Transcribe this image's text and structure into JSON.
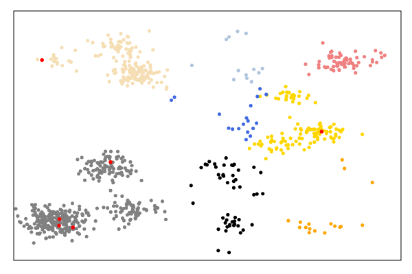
{
  "chart_data": {
    "type": "scatter",
    "title": "",
    "xlabel": "",
    "ylabel": "",
    "xlim": [
      0,
      100
    ],
    "ylim": [
      0,
      100
    ],
    "axes_visible": false,
    "grid": false,
    "legend": "none",
    "clusters": [
      {
        "color": "#808080",
        "center": [
          10.5,
          15.5
        ],
        "spread": [
          3.8,
          3.0
        ],
        "count": 230,
        "seed": 11
      },
      {
        "color": "#808080",
        "center": [
          24.0,
          37.5
        ],
        "spread": [
          3.3,
          2.6
        ],
        "count": 90,
        "seed": 12
      },
      {
        "color": "#808080",
        "center": [
          29.0,
          20.0
        ],
        "spread": [
          4.0,
          2.7
        ],
        "count": 65,
        "seed": 13
      },
      {
        "color": "#F5DEB3",
        "center": [
          31.5,
          75.0
        ],
        "spread": [
          3.2,
          2.6
        ],
        "count": 110,
        "seed": 21
      },
      {
        "color": "#F5DEB3",
        "center": [
          27.5,
          86.5
        ],
        "spread": [
          2.7,
          2.2
        ],
        "count": 45,
        "seed": 22
      },
      {
        "color": "#F5DEB3",
        "center": [
          9.5,
          80.5
        ],
        "spread": [
          2.4,
          1.7
        ],
        "count": 14,
        "seed": 23
      },
      {
        "color": "#F08080",
        "center": [
          84.5,
          79.5
        ],
        "spread": [
          3.2,
          2.1
        ],
        "count": 60,
        "seed": 31
      },
      {
        "color": "#FFD700",
        "center": [
          79.5,
          51.5
        ],
        "spread": [
          3.2,
          2.1
        ],
        "count": 60,
        "seed": 41
      },
      {
        "color": "#FFD700",
        "center": [
          67.5,
          47.0
        ],
        "spread": [
          3.6,
          1.9
        ],
        "count": 35,
        "seed": 42
      },
      {
        "color": "#FFD700",
        "center": [
          70.5,
          65.5
        ],
        "spread": [
          3.3,
          1.8
        ],
        "count": 25,
        "seed": 43
      },
      {
        "color": "#FFA500",
        "center": [
          79.5,
          12.5
        ],
        "spread": [
          6.0,
          1.4
        ],
        "count": 9,
        "seed": 51
      },
      {
        "color": "#000000",
        "center": [
          56.5,
          14.0
        ],
        "spread": [
          2.7,
          3.2
        ],
        "count": 20,
        "seed": 61
      },
      {
        "color": "#000000",
        "center": [
          54.0,
          36.5
        ],
        "spread": [
          4.8,
          3.3
        ],
        "count": 15,
        "seed": 62
      }
    ],
    "points": [
      {
        "x": 60.0,
        "y": 91.0,
        "color": "#B0C4DE"
      },
      {
        "x": 57.8,
        "y": 91.8,
        "color": "#B0C4DE"
      },
      {
        "x": 55.6,
        "y": 89.6,
        "color": "#B0C4DE"
      },
      {
        "x": 54.9,
        "y": 88.6,
        "color": "#B0C4DE"
      },
      {
        "x": 46.0,
        "y": 78.2,
        "color": "#B0C4DE"
      },
      {
        "x": 58.0,
        "y": 76.1,
        "color": "#B0C4DE"
      },
      {
        "x": 60.0,
        "y": 74.3,
        "color": "#B0C4DE"
      },
      {
        "x": 62.0,
        "y": 76.6,
        "color": "#B0C4DE"
      },
      {
        "x": 63.3,
        "y": 75.2,
        "color": "#B0C4DE"
      },
      {
        "x": 64.2,
        "y": 76.9,
        "color": "#B0C4DE"
      },
      {
        "x": 56.8,
        "y": 72.5,
        "color": "#B0C4DE"
      },
      {
        "x": 61.4,
        "y": 71.6,
        "color": "#B0C4DE"
      },
      {
        "x": 60.2,
        "y": 73.0,
        "color": "#B0C4DE"
      },
      {
        "x": 63.6,
        "y": 68.8,
        "color": "#4169E1"
      },
      {
        "x": 62.9,
        "y": 65.7,
        "color": "#4169E1"
      },
      {
        "x": 65.2,
        "y": 66.5,
        "color": "#4169E1"
      },
      {
        "x": 61.2,
        "y": 62.0,
        "color": "#4169E1"
      },
      {
        "x": 60.1,
        "y": 57.1,
        "color": "#4169E1"
      },
      {
        "x": 53.1,
        "y": 58.6,
        "color": "#4169E1"
      },
      {
        "x": 60.5,
        "y": 55.9,
        "color": "#4169E1"
      },
      {
        "x": 62.7,
        "y": 55.0,
        "color": "#4169E1"
      },
      {
        "x": 61.8,
        "y": 52.9,
        "color": "#4169E1"
      },
      {
        "x": 59.3,
        "y": 54.6,
        "color": "#4169E1"
      },
      {
        "x": 58.1,
        "y": 52.8,
        "color": "#4169E1"
      },
      {
        "x": 60.4,
        "y": 51.4,
        "color": "#4169E1"
      },
      {
        "x": 61.1,
        "y": 49.8,
        "color": "#4169E1"
      },
      {
        "x": 60.0,
        "y": 48.4,
        "color": "#4169E1"
      },
      {
        "x": 56.5,
        "y": 52.6,
        "color": "#4169E1"
      },
      {
        "x": 55.5,
        "y": 53.0,
        "color": "#4169E1"
      },
      {
        "x": 41.5,
        "y": 65.4,
        "color": "#4169E1"
      },
      {
        "x": 40.7,
        "y": 64.2,
        "color": "#4169E1"
      },
      {
        "x": 46.3,
        "y": 22.9,
        "color": "#000000"
      },
      {
        "x": 50.5,
        "y": 39.6,
        "color": "#000000"
      },
      {
        "x": 49.9,
        "y": 38.3,
        "color": "#000000"
      },
      {
        "x": 48.4,
        "y": 37.2,
        "color": "#000000"
      },
      {
        "x": 52.2,
        "y": 37.4,
        "color": "#000000"
      },
      {
        "x": 54.3,
        "y": 38.2,
        "color": "#000000"
      },
      {
        "x": 54.2,
        "y": 33.8,
        "color": "#000000"
      },
      {
        "x": 56.6,
        "y": 34.0,
        "color": "#000000"
      },
      {
        "x": 56.8,
        "y": 31.7,
        "color": "#000000"
      },
      {
        "x": 45.8,
        "y": 30.0,
        "color": "#000000"
      },
      {
        "x": 56.8,
        "y": 29.1,
        "color": "#000000"
      },
      {
        "x": 58.4,
        "y": 29.4,
        "color": "#000000"
      },
      {
        "x": 62.0,
        "y": 26.3,
        "color": "#000000"
      },
      {
        "x": 62.8,
        "y": 26.6,
        "color": "#000000"
      },
      {
        "x": 64.3,
        "y": 26.7,
        "color": "#000000"
      },
      {
        "x": 52.8,
        "y": 3.9,
        "color": "#000000"
      },
      {
        "x": 92.6,
        "y": 31.2,
        "color": "#FFA500"
      },
      {
        "x": 84.8,
        "y": 40.3,
        "color": "#FFA500"
      },
      {
        "x": 85.4,
        "y": 36.8,
        "color": "#FFA500"
      },
      {
        "x": 70.9,
        "y": 15.9,
        "color": "#FFA500"
      },
      {
        "x": 74.0,
        "y": 15.3,
        "color": "#FFA500"
      },
      {
        "x": 75.4,
        "y": 13.2,
        "color": "#FFA500"
      },
      {
        "x": 82.9,
        "y": 13.7,
        "color": "#FFA500"
      },
      {
        "x": 80.3,
        "y": 11.0,
        "color": "#FFA500"
      },
      {
        "x": 93.4,
        "y": 84.1,
        "color": "#F08080"
      },
      {
        "x": 94.8,
        "y": 83.2,
        "color": "#F08080"
      },
      {
        "x": 95.8,
        "y": 82.2,
        "color": "#F08080"
      },
      {
        "x": 79.8,
        "y": 87.2,
        "color": "#F08080"
      },
      {
        "x": 92.6,
        "y": 80.4,
        "color": "#F08080"
      },
      {
        "x": 95.0,
        "y": 81.4,
        "color": "#F08080"
      },
      {
        "x": 12.4,
        "y": 85.3,
        "color": "#F5DEB3"
      },
      {
        "x": 15.9,
        "y": 84.2,
        "color": "#F5DEB3"
      },
      {
        "x": 21.1,
        "y": 82.0,
        "color": "#F5DEB3"
      },
      {
        "x": 29.9,
        "y": 78.1,
        "color": "#F5DEB3"
      },
      {
        "x": 35.0,
        "y": 92.0,
        "color": "#F5DEB3"
      },
      {
        "x": 39.5,
        "y": 69.5,
        "color": "#F5DEB3"
      },
      {
        "x": 25.8,
        "y": 81.3,
        "color": "#F5DEB3"
      },
      {
        "x": 16.2,
        "y": 75.9,
        "color": "#F5DEB3"
      },
      {
        "x": 25.0,
        "y": 28.0,
        "color": "#808080"
      },
      {
        "x": 33.0,
        "y": 32.0,
        "color": "#808080"
      },
      {
        "x": 20.0,
        "y": 38.0,
        "color": "#808080"
      },
      {
        "x": 39.0,
        "y": 19.5,
        "color": "#808080"
      },
      {
        "x": 35.5,
        "y": 24.0,
        "color": "#808080"
      },
      {
        "x": 17.8,
        "y": 18.0,
        "color": "#808080"
      },
      {
        "x": 30.5,
        "y": 38.0,
        "color": "#808080"
      },
      {
        "x": 22.0,
        "y": 31.8,
        "color": "#808080"
      }
    ],
    "highlight_points": [
      {
        "x": 7.3,
        "y": 80.3,
        "color": "#FF0000"
      },
      {
        "x": 25.0,
        "y": 39.4,
        "color": "#FF0000"
      },
      {
        "x": 11.8,
        "y": 16.5,
        "color": "#FF0000"
      },
      {
        "x": 11.7,
        "y": 13.9,
        "color": "#FF0000"
      },
      {
        "x": 15.3,
        "y": 13.2,
        "color": "#FF0000"
      },
      {
        "x": 79.5,
        "y": 51.6,
        "color": "#FF0000"
      }
    ]
  }
}
